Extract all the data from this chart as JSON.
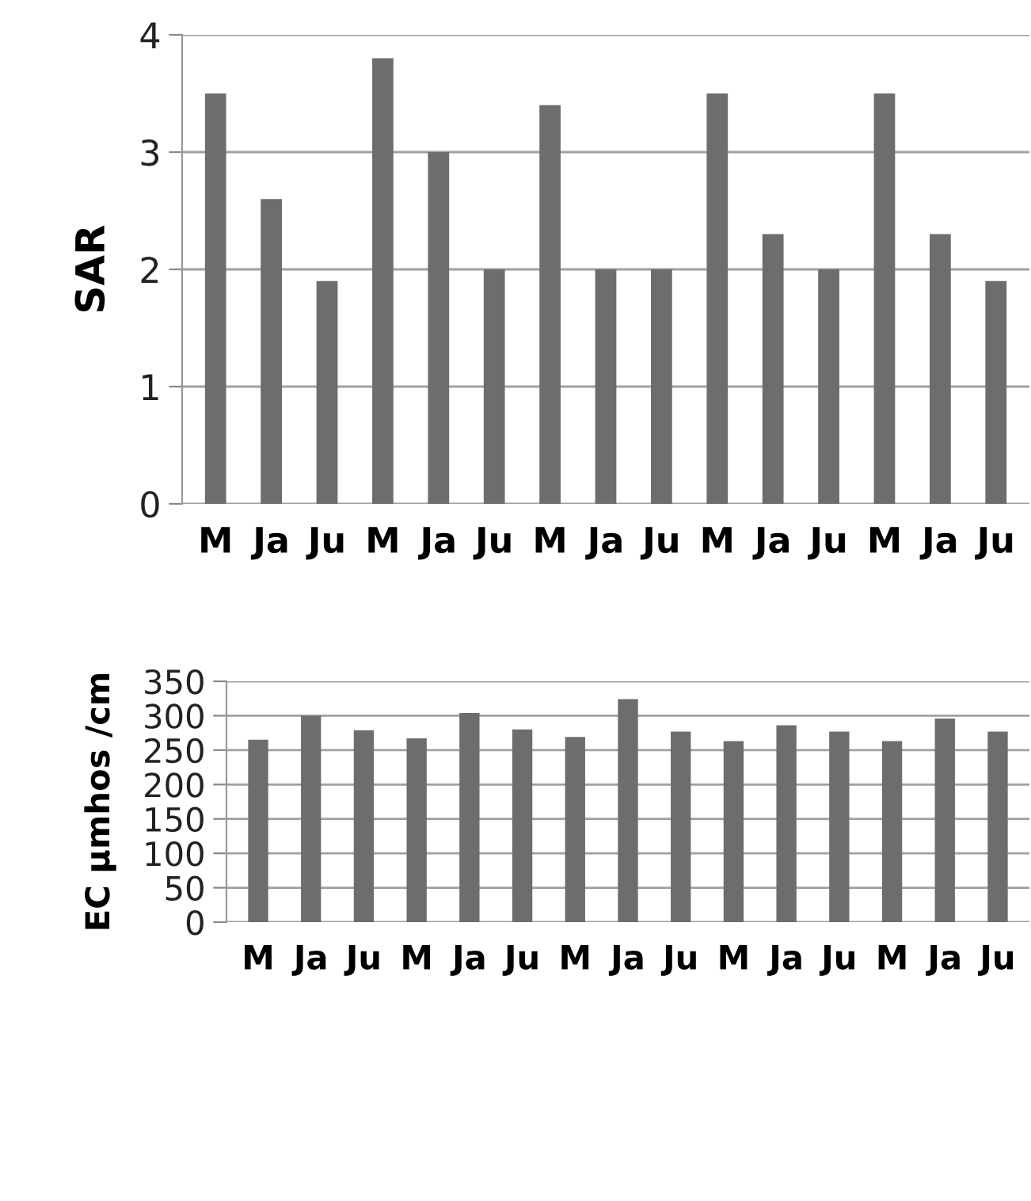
{
  "chart_data": [
    {
      "type": "bar",
      "ylabel": "SAR",
      "categories": [
        "M",
        "Ja",
        "Ju",
        "M",
        "Ja",
        "Ju",
        "M",
        "Ja",
        "Ju",
        "M",
        "Ja",
        "Ju",
        "M",
        "Ja",
        "Ju"
      ],
      "series": [
        {
          "color": "#6d6d6d",
          "values": [
            3.5,
            2.6,
            1.9,
            3.8,
            3.0,
            2.0,
            3.4,
            2.0,
            2.0,
            3.5,
            2.3,
            2.0,
            3.5,
            2.3,
            1.9
          ]
        }
      ],
      "ylim": [
        0,
        4
      ],
      "yticks": [
        0,
        1,
        2,
        3,
        4
      ],
      "grid": "y",
      "legend": false
    },
    {
      "type": "bar",
      "ylabel": "EC µmhos /cm",
      "categories": [
        "M",
        "Ja",
        "Ju",
        "M",
        "Ja",
        "Ju",
        "M",
        "Ja",
        "Ju",
        "M",
        "Ja",
        "Ju",
        "M",
        "Ja",
        "Ju"
      ],
      "series": [
        {
          "color": "#6d6d6d",
          "values": [
            265,
            300,
            279,
            267,
            304,
            280,
            269,
            324,
            277,
            263,
            286,
            277,
            263,
            296,
            277
          ]
        }
      ],
      "ylim": [
        0,
        350
      ],
      "yticks": [
        0,
        50,
        100,
        150,
        200,
        250,
        300,
        350
      ],
      "grid": "y",
      "legend": false
    }
  ]
}
